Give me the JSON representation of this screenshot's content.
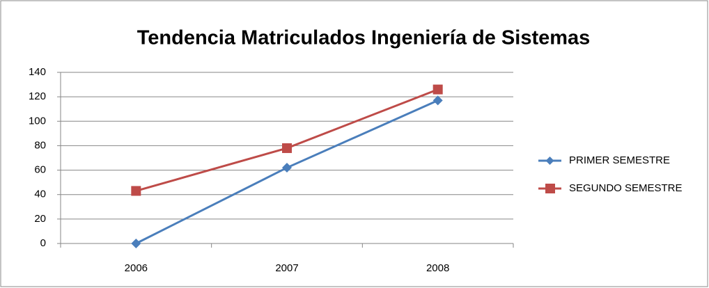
{
  "chart_data": {
    "type": "line",
    "title": "Tendencia Matriculados Ingeniería de Sistemas",
    "categories": [
      "2006",
      "2007",
      "2008"
    ],
    "series": [
      {
        "name": "PRIMER SEMESTRE",
        "color": "#4a7ebb",
        "marker": "diamond",
        "values": [
          0,
          62,
          117
        ]
      },
      {
        "name": "SEGUNDO SEMESTRE",
        "color": "#be4b48",
        "marker": "square",
        "values": [
          43,
          78,
          126
        ]
      }
    ],
    "ylim": [
      0,
      140
    ],
    "yticks": [
      0,
      20,
      40,
      60,
      80,
      100,
      120,
      140
    ],
    "grid": true,
    "legend": "right"
  }
}
